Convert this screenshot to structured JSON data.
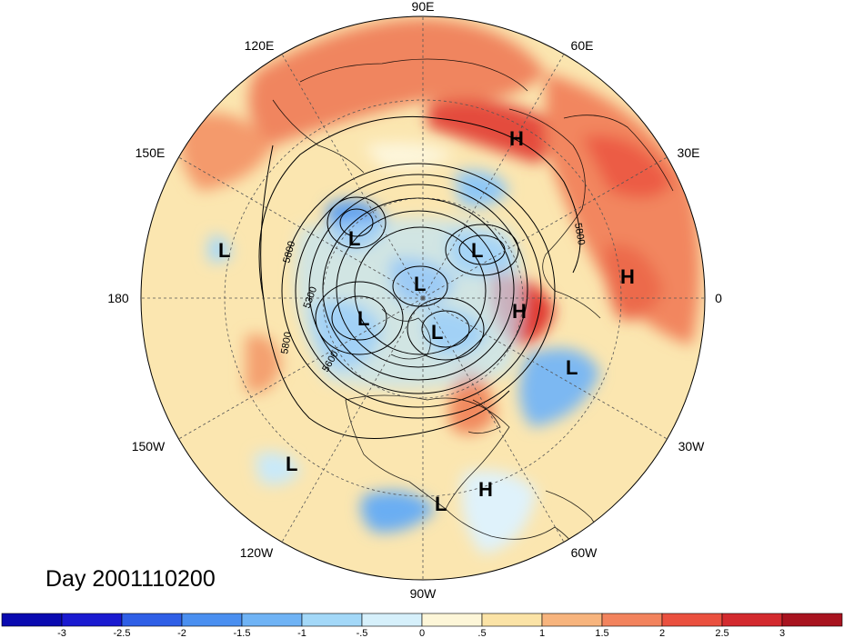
{
  "date_label": "Day 2001110200",
  "longitude_labels": [
    "90E",
    "60E",
    "30E",
    "0",
    "30W",
    "60W",
    "90W",
    "120W",
    "150W",
    "180",
    "150E",
    "120E"
  ],
  "contour_labels": [
    "5800",
    "5800",
    "5300",
    "5800",
    "5600"
  ],
  "pressure_centers": [
    {
      "type": "H",
      "label": "H"
    },
    {
      "type": "H",
      "label": "H"
    },
    {
      "type": "H",
      "label": "H"
    },
    {
      "type": "H",
      "label": "H"
    },
    {
      "type": "L",
      "label": "L"
    },
    {
      "type": "L",
      "label": "L"
    },
    {
      "type": "L",
      "label": "L"
    },
    {
      "type": "L",
      "label": "L"
    },
    {
      "type": "L",
      "label": "L"
    },
    {
      "type": "L",
      "label": "L"
    },
    {
      "type": "L",
      "label": "L"
    },
    {
      "type": "L",
      "label": "L"
    },
    {
      "type": "L",
      "label": "L"
    }
  ],
  "colorbar": {
    "tick_labels": [
      "-3",
      "-2.5",
      "-2",
      "-1.5",
      "-1",
      "-.5",
      "0",
      ".5",
      "1",
      "1.5",
      "2",
      "2.5",
      "3"
    ],
    "colors": [
      "#1a1ad0",
      "#2f5fe6",
      "#4a8ff0",
      "#6fb3f5",
      "#a3d8f8",
      "#d6f0fb",
      "#fdf6d8",
      "#fbe3a6",
      "#f7b47d",
      "#f2835d",
      "#ea503f",
      "#d32a2e",
      "#a8131f"
    ]
  }
}
